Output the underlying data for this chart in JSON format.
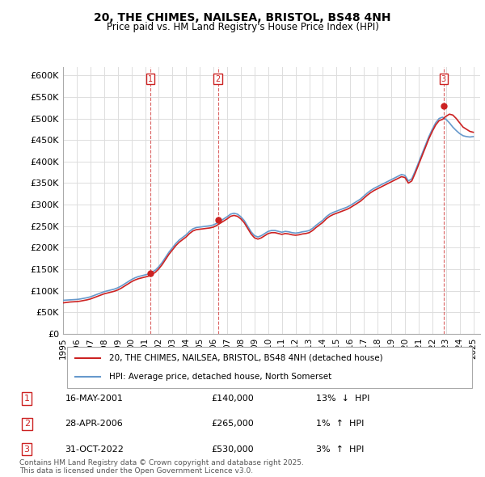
{
  "title": "20, THE CHIMES, NAILSEA, BRISTOL, BS48 4NH",
  "subtitle": "Price paid vs. HM Land Registry's House Price Index (HPI)",
  "ylabel_ticks": [
    "£0",
    "£50K",
    "£100K",
    "£150K",
    "£200K",
    "£250K",
    "£300K",
    "£350K",
    "£400K",
    "£450K",
    "£500K",
    "£550K",
    "£600K"
  ],
  "ytick_values": [
    0,
    50000,
    100000,
    150000,
    200000,
    250000,
    300000,
    350000,
    400000,
    450000,
    500000,
    550000,
    600000
  ],
  "ylim": [
    0,
    620000
  ],
  "xlim_start": 1995.0,
  "xlim_end": 2025.5,
  "hpi_color": "#6699cc",
  "price_color": "#cc2222",
  "marker_color_border": "#cc2222",
  "background_color": "#ffffff",
  "grid_color": "#dddddd",
  "legend_label_price": "20, THE CHIMES, NAILSEA, BRISTOL, BS48 4NH (detached house)",
  "legend_label_hpi": "HPI: Average price, detached house, North Somerset",
  "transactions": [
    {
      "num": 1,
      "date": "16-MAY-2001",
      "price": 140000,
      "pct": "13%",
      "dir": "↓",
      "year": 2001.37
    },
    {
      "num": 2,
      "date": "28-APR-2006",
      "price": 265000,
      "pct": "1%",
      "dir": "↑",
      "year": 2006.32
    },
    {
      "num": 3,
      "date": "31-OCT-2022",
      "price": 530000,
      "pct": "3%",
      "dir": "↑",
      "year": 2022.83
    }
  ],
  "footer_line1": "Contains HM Land Registry data © Crown copyright and database right 2025.",
  "footer_line2": "This data is licensed under the Open Government Licence v3.0.",
  "hpi_data_x": [
    1995.0,
    1995.25,
    1995.5,
    1995.75,
    1996.0,
    1996.25,
    1996.5,
    1996.75,
    1997.0,
    1997.25,
    1997.5,
    1997.75,
    1998.0,
    1998.25,
    1998.5,
    1998.75,
    1999.0,
    1999.25,
    1999.5,
    1999.75,
    2000.0,
    2000.25,
    2000.5,
    2000.75,
    2001.0,
    2001.25,
    2001.5,
    2001.75,
    2002.0,
    2002.25,
    2002.5,
    2002.75,
    2003.0,
    2003.25,
    2003.5,
    2003.75,
    2004.0,
    2004.25,
    2004.5,
    2004.75,
    2005.0,
    2005.25,
    2005.5,
    2005.75,
    2006.0,
    2006.25,
    2006.5,
    2006.75,
    2007.0,
    2007.25,
    2007.5,
    2007.75,
    2008.0,
    2008.25,
    2008.5,
    2008.75,
    2009.0,
    2009.25,
    2009.5,
    2009.75,
    2010.0,
    2010.25,
    2010.5,
    2010.75,
    2011.0,
    2011.25,
    2011.5,
    2011.75,
    2012.0,
    2012.25,
    2012.5,
    2012.75,
    2013.0,
    2013.25,
    2013.5,
    2013.75,
    2014.0,
    2014.25,
    2014.5,
    2014.75,
    2015.0,
    2015.25,
    2015.5,
    2015.75,
    2016.0,
    2016.25,
    2016.5,
    2016.75,
    2017.0,
    2017.25,
    2017.5,
    2017.75,
    2018.0,
    2018.25,
    2018.5,
    2018.75,
    2019.0,
    2019.25,
    2019.5,
    2019.75,
    2020.0,
    2020.25,
    2020.5,
    2020.75,
    2021.0,
    2021.25,
    2021.5,
    2021.75,
    2022.0,
    2022.25,
    2022.5,
    2022.75,
    2023.0,
    2023.25,
    2023.5,
    2023.75,
    2024.0,
    2024.25,
    2024.5,
    2024.75,
    2025.0
  ],
  "hpi_data_y": [
    78000,
    78500,
    79000,
    79500,
    80000,
    81000,
    82500,
    84000,
    86000,
    89000,
    92000,
    95000,
    98000,
    100000,
    102000,
    104000,
    107000,
    111000,
    116000,
    121000,
    126000,
    130000,
    133000,
    135000,
    137000,
    139000,
    143000,
    148000,
    156000,
    166000,
    178000,
    190000,
    200000,
    210000,
    218000,
    224000,
    230000,
    238000,
    244000,
    247000,
    248000,
    249000,
    250000,
    251000,
    253000,
    257000,
    262000,
    267000,
    272000,
    278000,
    280000,
    278000,
    272000,
    263000,
    250000,
    237000,
    228000,
    225000,
    228000,
    233000,
    238000,
    240000,
    240000,
    238000,
    236000,
    238000,
    237000,
    235000,
    234000,
    235000,
    237000,
    238000,
    240000,
    245000,
    252000,
    258000,
    264000,
    272000,
    278000,
    282000,
    285000,
    288000,
    291000,
    294000,
    298000,
    303000,
    308000,
    313000,
    320000,
    327000,
    333000,
    338000,
    342000,
    346000,
    350000,
    354000,
    358000,
    362000,
    366000,
    370000,
    368000,
    355000,
    360000,
    378000,
    398000,
    418000,
    438000,
    458000,
    475000,
    490000,
    500000,
    503000,
    498000,
    490000,
    480000,
    472000,
    465000,
    460000,
    458000,
    457000,
    458000
  ],
  "price_data_x": [
    1995.0,
    1995.25,
    1995.5,
    1995.75,
    1996.0,
    1996.25,
    1996.5,
    1996.75,
    1997.0,
    1997.25,
    1997.5,
    1997.75,
    1998.0,
    1998.25,
    1998.5,
    1998.75,
    1999.0,
    1999.25,
    1999.5,
    1999.75,
    2000.0,
    2000.25,
    2000.5,
    2000.75,
    2001.0,
    2001.25,
    2001.5,
    2001.75,
    2002.0,
    2002.25,
    2002.5,
    2002.75,
    2003.0,
    2003.25,
    2003.5,
    2003.75,
    2004.0,
    2004.25,
    2004.5,
    2004.75,
    2005.0,
    2005.25,
    2005.5,
    2005.75,
    2006.0,
    2006.25,
    2006.5,
    2006.75,
    2007.0,
    2007.25,
    2007.5,
    2007.75,
    2008.0,
    2008.25,
    2008.5,
    2008.75,
    2009.0,
    2009.25,
    2009.5,
    2009.75,
    2010.0,
    2010.25,
    2010.5,
    2010.75,
    2011.0,
    2011.25,
    2011.5,
    2011.75,
    2012.0,
    2012.25,
    2012.5,
    2012.75,
    2013.0,
    2013.25,
    2013.5,
    2013.75,
    2014.0,
    2014.25,
    2014.5,
    2014.75,
    2015.0,
    2015.25,
    2015.5,
    2015.75,
    2016.0,
    2016.25,
    2016.5,
    2016.75,
    2017.0,
    2017.25,
    2017.5,
    2017.75,
    2018.0,
    2018.25,
    2018.5,
    2018.75,
    2019.0,
    2019.25,
    2019.5,
    2019.75,
    2020.0,
    2020.25,
    2020.5,
    2020.75,
    2021.0,
    2021.25,
    2021.5,
    2021.75,
    2022.0,
    2022.25,
    2022.5,
    2022.75,
    2023.0,
    2023.25,
    2023.5,
    2023.75,
    2024.0,
    2024.25,
    2024.5,
    2024.75,
    2025.0
  ],
  "price_data_y": [
    72000,
    73000,
    74000,
    74500,
    75000,
    76000,
    77500,
    79000,
    81000,
    84000,
    87000,
    90000,
    93000,
    95000,
    97000,
    99000,
    102000,
    106000,
    111000,
    116000,
    121000,
    125000,
    128000,
    130000,
    132000,
    134000,
    138000,
    143000,
    151000,
    161000,
    173000,
    185000,
    195000,
    205000,
    213000,
    219000,
    225000,
    233000,
    239000,
    242000,
    243000,
    244000,
    245000,
    246000,
    248000,
    252000,
    257000,
    262000,
    267000,
    273000,
    275000,
    273000,
    267000,
    258000,
    245000,
    232000,
    223000,
    220000,
    223000,
    228000,
    233000,
    235000,
    235000,
    233000,
    231000,
    233000,
    232000,
    230000,
    229000,
    230000,
    232000,
    233000,
    235000,
    240000,
    247000,
    253000,
    259000,
    267000,
    273000,
    277000,
    280000,
    283000,
    286000,
    289000,
    293000,
    298000,
    303000,
    308000,
    315000,
    322000,
    328000,
    333000,
    337000,
    341000,
    345000,
    349000,
    353000,
    357000,
    361000,
    365000,
    363000,
    350000,
    355000,
    373000,
    393000,
    413000,
    433000,
    453000,
    470000,
    485000,
    495000,
    498000,
    505000,
    510000,
    508000,
    500000,
    490000,
    480000,
    475000,
    470000,
    468000
  ]
}
